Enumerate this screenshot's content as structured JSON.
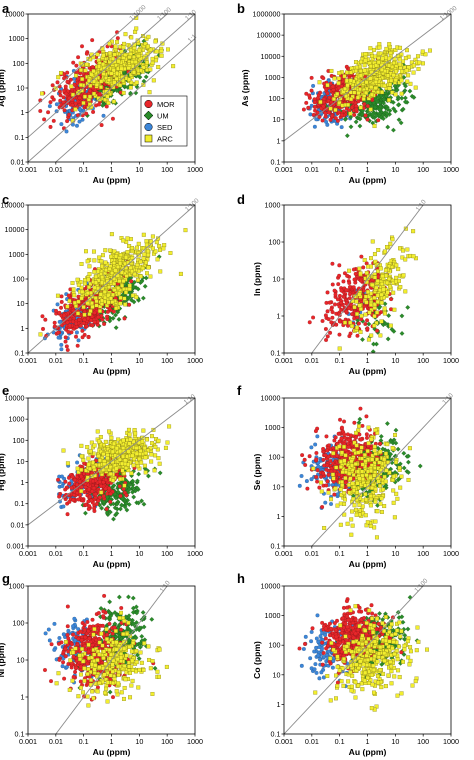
{
  "chart_data": [
    {
      "type": "scatter",
      "panel": "a",
      "xlabel": "Au (ppm)",
      "ylabel": "Ag (ppm)",
      "xscale": "log",
      "yscale": "log",
      "xlim": [
        0.001,
        1000
      ],
      "ylim": [
        0.01,
        10000
      ],
      "xticks": [
        "0.001",
        "0.01",
        "0.1",
        "1",
        "10",
        "100",
        "1000"
      ],
      "yticks": [
        "0.01",
        "0.1",
        "1",
        "10",
        "100",
        "1000",
        "10000"
      ],
      "ratio_lines": [
        1000,
        100,
        10,
        1
      ],
      "ratio_labels": [
        "1:1000",
        "1:100",
        "1:10",
        "1:1"
      ],
      "legend": [
        "MOR",
        "UM",
        "SED",
        "ARC"
      ],
      "legend_position": "bottom-right",
      "series": [
        {
          "name": "MOR",
          "clouds": [
            {
              "x": 0.15,
              "y": 15,
              "sx": 0.6,
              "sy": 0.65,
              "rho": 0.5,
              "n": 380
            }
          ]
        },
        {
          "name": "UM",
          "clouds": [
            {
              "x": 2.0,
              "y": 25,
              "sx": 0.55,
              "sy": 0.5,
              "rho": 0.6,
              "n": 280
            }
          ]
        },
        {
          "name": "SED",
          "clouds": [
            {
              "x": 0.08,
              "y": 4,
              "sx": 0.45,
              "sy": 0.55,
              "rho": 0.4,
              "n": 130
            }
          ]
        },
        {
          "name": "ARC",
          "clouds": [
            {
              "x": 1.5,
              "y": 60,
              "sx": 0.7,
              "sy": 0.6,
              "rho": 0.55,
              "n": 420
            }
          ]
        }
      ]
    },
    {
      "type": "scatter",
      "panel": "b",
      "xlabel": "Au (ppm)",
      "ylabel": "As (ppm)",
      "xscale": "log",
      "yscale": "log",
      "xlim": [
        0.001,
        1000
      ],
      "ylim": [
        0.1,
        1000000
      ],
      "xticks": [
        "0.001",
        "0.01",
        "0.1",
        "1",
        "10",
        "100",
        "1000"
      ],
      "yticks": [
        "0.1",
        "1",
        "10",
        "100",
        "1000",
        "10000",
        "100000",
        "1000000"
      ],
      "ratio_lines": [
        1000
      ],
      "ratio_labels": [
        "1:1000"
      ],
      "series": [
        {
          "name": "MOR",
          "clouds": [
            {
              "x": 0.15,
              "y": 150,
              "sx": 0.55,
              "sy": 0.55,
              "rho": 0.4,
              "n": 360
            }
          ]
        },
        {
          "name": "UM",
          "clouds": [
            {
              "x": 2.0,
              "y": 80,
              "sx": 0.55,
              "sy": 0.6,
              "rho": 0.4,
              "n": 260
            }
          ]
        },
        {
          "name": "SED",
          "clouds": [
            {
              "x": 0.05,
              "y": 60,
              "sx": 0.45,
              "sy": 0.5,
              "rho": 0.3,
              "n": 120
            }
          ]
        },
        {
          "name": "ARC",
          "clouds": [
            {
              "x": 2.0,
              "y": 1500,
              "sx": 0.7,
              "sy": 0.65,
              "rho": 0.45,
              "n": 420
            }
          ]
        }
      ]
    },
    {
      "type": "scatter",
      "panel": "c",
      "xlabel": "Au (ppm)",
      "ylabel": "Sb (ppm)",
      "xscale": "log",
      "yscale": "log",
      "xlim": [
        0.001,
        1000
      ],
      "ylim": [
        0.1,
        100000
      ],
      "xticks": [
        "0.001",
        "0.01",
        "0.1",
        "1",
        "10",
        "100",
        "1000"
      ],
      "yticks": [
        "0.1",
        "1",
        "10",
        "100",
        "1000",
        "10000",
        "100000"
      ],
      "ratio_lines": [
        100
      ],
      "ratio_labels": [
        "1:100"
      ],
      "series": [
        {
          "name": "MOR",
          "clouds": [
            {
              "x": 0.15,
              "y": 8,
              "sx": 0.6,
              "sy": 0.6,
              "rho": 0.6,
              "n": 380
            }
          ]
        },
        {
          "name": "UM",
          "clouds": [
            {
              "x": 1.5,
              "y": 20,
              "sx": 0.5,
              "sy": 0.55,
              "rho": 0.5,
              "n": 220
            }
          ]
        },
        {
          "name": "SED",
          "clouds": [
            {
              "x": 0.05,
              "y": 3,
              "sx": 0.45,
              "sy": 0.5,
              "rho": 0.5,
              "n": 110
            }
          ]
        },
        {
          "name": "ARC",
          "clouds": [
            {
              "x": 1.5,
              "y": 150,
              "sx": 0.7,
              "sy": 0.7,
              "rho": 0.6,
              "n": 450
            }
          ]
        }
      ]
    },
    {
      "type": "scatter",
      "panel": "d",
      "xlabel": "Au (ppm)",
      "ylabel": "In (ppm)",
      "xscale": "log",
      "yscale": "log",
      "xlim": [
        0.001,
        1000
      ],
      "ylim": [
        0.1,
        1000
      ],
      "xticks": [
        "0.001",
        "0.01",
        "0.1",
        "1",
        "10",
        "100",
        "1000"
      ],
      "yticks": [
        "0.1",
        "1",
        "10",
        "100",
        "1000"
      ],
      "ratio_lines": [
        10
      ],
      "ratio_labels": [
        "1:10"
      ],
      "series": [
        {
          "name": "MOR",
          "clouds": [
            {
              "x": 0.4,
              "y": 3,
              "sx": 0.55,
              "sy": 0.45,
              "rho": 0.4,
              "n": 300
            }
          ]
        },
        {
          "name": "UM",
          "clouds": [
            {
              "x": 3.0,
              "y": 1,
              "sx": 0.4,
              "sy": 0.4,
              "rho": 0.2,
              "n": 60
            }
          ]
        },
        {
          "name": "SED",
          "clouds": [
            {
              "x": 0.3,
              "y": 1,
              "sx": 0.3,
              "sy": 0.3,
              "rho": 0.2,
              "n": 12
            }
          ]
        },
        {
          "name": "ARC",
          "clouds": [
            {
              "x": 3.0,
              "y": 8,
              "sx": 0.5,
              "sy": 0.55,
              "rho": 0.5,
              "n": 190
            }
          ]
        }
      ]
    },
    {
      "type": "scatter",
      "panel": "e",
      "xlabel": "Au (ppm)",
      "ylabel": "Hg (ppm)",
      "xscale": "log",
      "yscale": "log",
      "xlim": [
        0.001,
        1000
      ],
      "ylim": [
        0.001,
        10000
      ],
      "xticks": [
        "0.001",
        "0.01",
        "0.1",
        "1",
        "10",
        "100",
        "1000"
      ],
      "yticks": [
        "0.001",
        "0.01",
        "0.1",
        "1",
        "10",
        "100",
        "1000",
        "10000"
      ],
      "ratio_lines": [
        10
      ],
      "ratio_labels": [
        "1:10"
      ],
      "series": [
        {
          "name": "MOR",
          "clouds": [
            {
              "x": 0.2,
              "y": 1,
              "sx": 0.55,
              "sy": 0.5,
              "rho": 0.2,
              "n": 330
            }
          ]
        },
        {
          "name": "UM",
          "clouds": [
            {
              "x": 1.5,
              "y": 0.5,
              "sx": 0.5,
              "sy": 0.55,
              "rho": 0.2,
              "n": 220
            }
          ]
        },
        {
          "name": "SED",
          "clouds": [
            {
              "x": 0.1,
              "y": 1,
              "sx": 0.45,
              "sy": 0.5,
              "rho": 0.2,
              "n": 110
            }
          ]
        },
        {
          "name": "ARC",
          "clouds": [
            {
              "x": 2.0,
              "y": 20,
              "sx": 0.6,
              "sy": 0.55,
              "rho": 0.3,
              "n": 400
            }
          ]
        }
      ]
    },
    {
      "type": "scatter",
      "panel": "f",
      "xlabel": "Au (ppm)",
      "ylabel": "Se (ppm)",
      "xscale": "log",
      "yscale": "log",
      "xlim": [
        0.001,
        1000
      ],
      "ylim": [
        0.1,
        10000
      ],
      "xticks": [
        "0.001",
        "0.01",
        "0.1",
        "1",
        "10",
        "100",
        "1000"
      ],
      "yticks": [
        "0.1",
        "1",
        "10",
        "100",
        "1000",
        "10000"
      ],
      "ratio_lines": [
        10
      ],
      "ratio_labels": [
        "1:10"
      ],
      "series": [
        {
          "name": "MOR",
          "clouds": [
            {
              "x": 0.2,
              "y": 80,
              "sx": 0.55,
              "sy": 0.5,
              "rho": 0.1,
              "n": 440
            }
          ]
        },
        {
          "name": "UM",
          "clouds": [
            {
              "x": 2.0,
              "y": 50,
              "sx": 0.5,
              "sy": 0.55,
              "rho": 0.2,
              "n": 260
            }
          ]
        },
        {
          "name": "SED",
          "clouds": [
            {
              "x": 0.05,
              "y": 40,
              "sx": 0.45,
              "sy": 0.5,
              "rho": 0.1,
              "n": 120
            }
          ]
        },
        {
          "name": "ARC",
          "clouds": [
            {
              "x": 1.0,
              "y": 20,
              "sx": 0.65,
              "sy": 0.7,
              "rho": 0.1,
              "n": 320
            }
          ]
        }
      ]
    },
    {
      "type": "scatter",
      "panel": "g",
      "xlabel": "Au (ppm)",
      "ylabel": "Ni (ppm)",
      "xscale": "log",
      "yscale": "log",
      "xlim": [
        0.001,
        1000
      ],
      "ylim": [
        0.1,
        1000
      ],
      "xticks": [
        "0.001",
        "0.01",
        "0.1",
        "1",
        "10",
        "100",
        "1000"
      ],
      "yticks": [
        "0.1",
        "1",
        "10",
        "100",
        "1000"
      ],
      "ratio_lines": [
        10
      ],
      "ratio_labels": [
        "1:10"
      ],
      "series": [
        {
          "name": "MOR",
          "clouds": [
            {
              "x": 0.2,
              "y": 15,
              "sx": 0.55,
              "sy": 0.5,
              "rho": 0.1,
              "n": 360
            }
          ]
        },
        {
          "name": "UM",
          "clouds": [
            {
              "x": 2.0,
              "y": 40,
              "sx": 0.5,
              "sy": 0.45,
              "rho": 0.2,
              "n": 260
            }
          ]
        },
        {
          "name": "SED",
          "clouds": [
            {
              "x": 0.05,
              "y": 25,
              "sx": 0.45,
              "sy": 0.4,
              "rho": 0.1,
              "n": 110
            }
          ]
        },
        {
          "name": "ARC",
          "clouds": [
            {
              "x": 1.0,
              "y": 8,
              "sx": 0.65,
              "sy": 0.45,
              "rho": 0.1,
              "n": 260
            }
          ]
        }
      ]
    },
    {
      "type": "scatter",
      "panel": "h",
      "xlabel": "Au (ppm)",
      "ylabel": "Co (ppm)",
      "xscale": "log",
      "yscale": "log",
      "xlim": [
        0.001,
        1000
      ],
      "ylim": [
        0.1,
        10000
      ],
      "xticks": [
        "0.001",
        "0.01",
        "0.1",
        "1",
        "10",
        "100",
        "1000"
      ],
      "yticks": [
        "0.1",
        "1",
        "10",
        "100",
        "1000",
        "10000"
      ],
      "ratio_lines": [
        100
      ],
      "ratio_labels": [
        "1:100"
      ],
      "series": [
        {
          "name": "MOR",
          "clouds": [
            {
              "x": 0.3,
              "y": 200,
              "sx": 0.5,
              "sy": 0.45,
              "rho": 0.2,
              "n": 440
            }
          ]
        },
        {
          "name": "UM",
          "clouds": [
            {
              "x": 2.0,
              "y": 150,
              "sx": 0.5,
              "sy": 0.45,
              "rho": 0.2,
              "n": 260
            }
          ]
        },
        {
          "name": "SED",
          "clouds": [
            {
              "x": 0.05,
              "y": 60,
              "sx": 0.45,
              "sy": 0.45,
              "rho": 0.1,
              "n": 120
            }
          ]
        },
        {
          "name": "ARC",
          "clouds": [
            {
              "x": 1.5,
              "y": 40,
              "sx": 0.65,
              "sy": 0.65,
              "rho": 0.2,
              "n": 320
            }
          ]
        }
      ]
    }
  ],
  "legend": [
    {
      "name": "MOR",
      "color": "#e8262a",
      "marker": "circle"
    },
    {
      "name": "UM",
      "color": "#2a8b2a",
      "marker": "diamond"
    },
    {
      "name": "SED",
      "color": "#3c86d8",
      "marker": "circle"
    },
    {
      "name": "ARC",
      "color": "#f2ee2e",
      "marker": "square"
    }
  ],
  "colors": {
    "MOR": "#e8262a",
    "UM": "#2a8b2a",
    "SED": "#3c86d8",
    "ARC": "#f2ee2e",
    "ratio_line": "#8c8c8c"
  }
}
